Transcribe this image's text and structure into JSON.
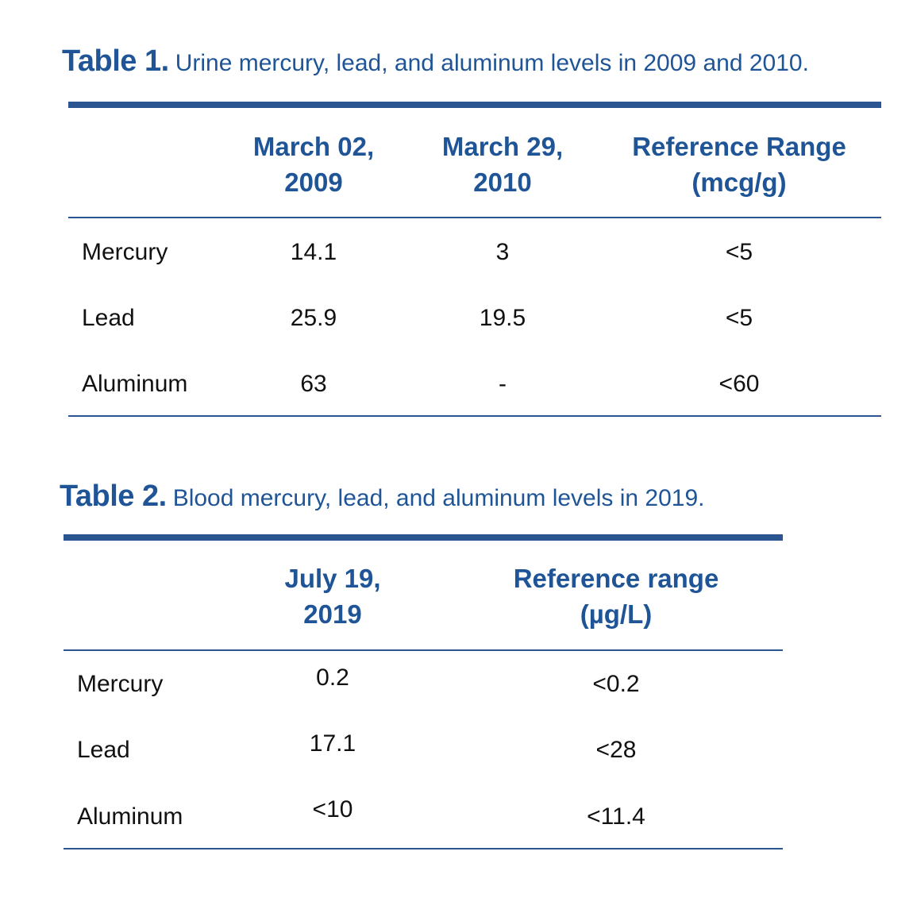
{
  "table1": {
    "label": "Table 1.",
    "caption": "Urine mercury, lead, and aluminum levels in 2009 and 2010.",
    "headers": [
      {
        "line1": "March 02,",
        "line2": "2009"
      },
      {
        "line1": "March 29,",
        "line2": "2010"
      },
      {
        "line1": "Reference Range",
        "line2": "(mcg/g)"
      }
    ],
    "rows": [
      {
        "name": "Mercury",
        "values": [
          "14.1",
          "3",
          "<5"
        ]
      },
      {
        "name": "Lead",
        "values": [
          "25.9",
          "19.5",
          "<5"
        ]
      },
      {
        "name": "Aluminum",
        "values": [
          "63",
          "-",
          "<60"
        ]
      }
    ]
  },
  "table2": {
    "label": "Table 2.",
    "caption": "Blood mercury, lead, and aluminum levels in 2019.",
    "headers": [
      {
        "line1": "July 19,",
        "line2": "2019"
      },
      {
        "line1": "Reference range",
        "line2": "(µg/L)"
      }
    ],
    "rows": [
      {
        "name": "Mercury",
        "values": [
          "0.2",
          "<0.2"
        ]
      },
      {
        "name": "Lead",
        "values": [
          "17.1",
          "<28"
        ]
      },
      {
        "name": "Aluminum",
        "values": [
          "<10",
          "<11.4"
        ]
      }
    ]
  },
  "colors": {
    "accent": "#1f5596",
    "rule": "#2a5590",
    "text": "#111111"
  }
}
